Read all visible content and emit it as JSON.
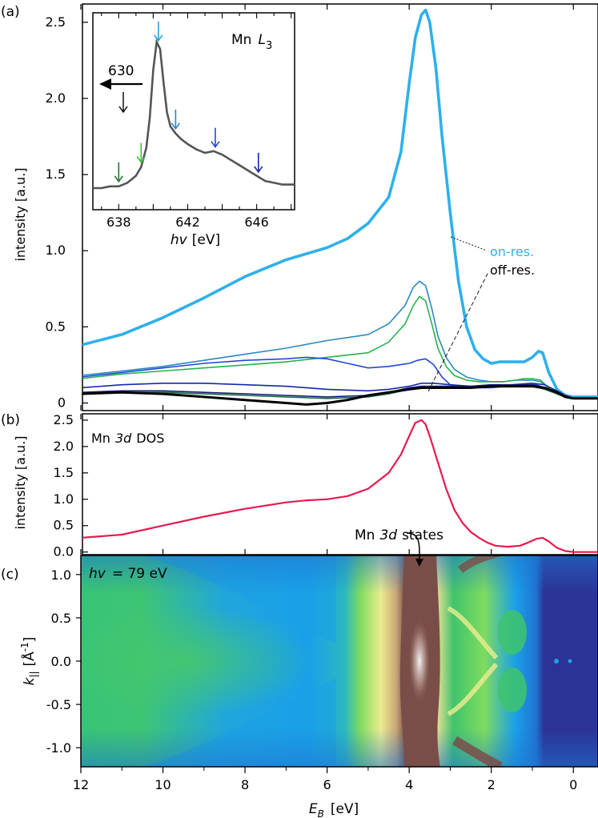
{
  "chart_data": [
    {
      "panel_label": "(a)",
      "type": "line",
      "ylabel": "intensity [a.u.]",
      "xlim": [
        12,
        -0.6
      ],
      "ylim": [
        -0.05,
        2.62
      ],
      "yticks": [
        "0",
        "0.5",
        "1.0",
        "1.5",
        "2.0",
        "2.5"
      ],
      "ytick_values": [
        0,
        0.5,
        1.0,
        1.5,
        2.0,
        2.5
      ],
      "labels": {
        "on_res": "on-res.",
        "off_res": "off-res."
      },
      "series": [
        {
          "color": "#2eb0ec",
          "width": 3.6,
          "x": [
            12,
            11,
            10,
            9,
            8,
            7,
            6,
            5.5,
            5,
            4.5,
            4.2,
            4.0,
            3.85,
            3.7,
            3.6,
            3.5,
            3.35,
            3.2,
            3.0,
            2.8,
            2.6,
            2.4,
            2.2,
            2.0,
            1.8,
            1.5,
            1.2,
            1.0,
            0.85,
            0.75,
            0.6,
            0.4,
            0.2,
            0,
            -0.2,
            -0.6
          ],
          "y": [
            0.38,
            0.45,
            0.56,
            0.69,
            0.83,
            0.94,
            1.02,
            1.08,
            1.18,
            1.35,
            1.65,
            2.1,
            2.4,
            2.55,
            2.58,
            2.5,
            2.2,
            1.75,
            1.25,
            0.8,
            0.5,
            0.35,
            0.29,
            0.26,
            0.27,
            0.27,
            0.27,
            0.3,
            0.34,
            0.33,
            0.2,
            0.09,
            0.05,
            0.04,
            0.04,
            0.04
          ]
        },
        {
          "color": "#2a88c2",
          "width": 1.6,
          "x": [
            12,
            11,
            10,
            9,
            8,
            7,
            6,
            5,
            4.5,
            4.1,
            3.9,
            3.75,
            3.6,
            3.45,
            3.3,
            3.1,
            2.9,
            2.6,
            2.3,
            2.0,
            1.7,
            1.4,
            1.2,
            1.0,
            0.8,
            0.6,
            0.4,
            0.2,
            0,
            -0.6
          ],
          "y": [
            0.18,
            0.21,
            0.24,
            0.28,
            0.32,
            0.36,
            0.41,
            0.45,
            0.52,
            0.64,
            0.76,
            0.8,
            0.77,
            0.62,
            0.44,
            0.3,
            0.22,
            0.17,
            0.15,
            0.14,
            0.14,
            0.15,
            0.15,
            0.15,
            0.14,
            0.1,
            0.06,
            0.04,
            0.03,
            0.03
          ]
        },
        {
          "color": "#27b24f",
          "width": 1.6,
          "x": [
            12,
            11,
            10,
            9,
            8,
            7,
            6,
            5,
            4.5,
            4.1,
            3.9,
            3.75,
            3.6,
            3.45,
            3.3,
            3.1,
            2.9,
            2.6,
            2.3,
            2.0,
            1.7,
            1.4,
            1.2,
            1.0,
            0.8,
            0.6,
            0.4,
            0.2,
            0,
            -0.6
          ],
          "y": [
            0.16,
            0.19,
            0.21,
            0.23,
            0.25,
            0.27,
            0.3,
            0.33,
            0.4,
            0.52,
            0.64,
            0.7,
            0.67,
            0.52,
            0.36,
            0.24,
            0.18,
            0.15,
            0.14,
            0.14,
            0.14,
            0.15,
            0.16,
            0.16,
            0.15,
            0.1,
            0.06,
            0.04,
            0.03,
            0.03
          ]
        },
        {
          "color": "#2246d8",
          "width": 1.6,
          "x": [
            12,
            11,
            10,
            9,
            8,
            7,
            6.5,
            6,
            5.5,
            5,
            4.5,
            4.0,
            3.8,
            3.6,
            3.4,
            3.2,
            3.0,
            2.7,
            2.4,
            2.0,
            1.6,
            1.2,
            0.9,
            0.6,
            0.3,
            0,
            -0.6
          ],
          "y": [
            0.17,
            0.2,
            0.23,
            0.26,
            0.28,
            0.29,
            0.3,
            0.29,
            0.26,
            0.23,
            0.24,
            0.26,
            0.28,
            0.29,
            0.25,
            0.17,
            0.12,
            0.1,
            0.1,
            0.1,
            0.11,
            0.12,
            0.12,
            0.09,
            0.05,
            0.03,
            0.03
          ]
        },
        {
          "color": "#1428a8",
          "width": 1.6,
          "x": [
            12,
            11,
            10,
            9,
            8,
            7,
            6,
            5,
            4.5,
            4.0,
            3.7,
            3.4,
            3.0,
            2.5,
            2.0,
            1.5,
            1.0,
            0.7,
            0.4,
            0.2,
            0,
            -0.6
          ],
          "y": [
            0.1,
            0.12,
            0.13,
            0.13,
            0.12,
            0.11,
            0.09,
            0.08,
            0.09,
            0.11,
            0.13,
            0.13,
            0.12,
            0.11,
            0.11,
            0.12,
            0.13,
            0.12,
            0.08,
            0.05,
            0.03,
            0.03
          ]
        },
        {
          "color": "#141e70",
          "width": 1.6,
          "x": [
            12,
            11,
            10,
            9,
            8,
            7,
            6,
            5,
            4.5,
            4.0,
            3.7,
            3.4,
            3.0,
            2.5,
            2.0,
            1.5,
            1.0,
            0.7,
            0.4,
            0.2,
            0,
            -0.6
          ],
          "y": [
            0.07,
            0.08,
            0.08,
            0.07,
            0.06,
            0.05,
            0.04,
            0.05,
            0.07,
            0.1,
            0.11,
            0.11,
            0.11,
            0.11,
            0.12,
            0.12,
            0.12,
            0.1,
            0.07,
            0.05,
            0.03,
            0.03
          ]
        },
        {
          "color": "#1c6a4a",
          "width": 1.6,
          "x": [
            12,
            11,
            10,
            9,
            8,
            7,
            6,
            5,
            4.5,
            4.0,
            3.7,
            3.4,
            3.0,
            2.5,
            2.0,
            1.5,
            1.0,
            0.7,
            0.4,
            0.2,
            0,
            -0.6
          ],
          "y": [
            0.06,
            0.07,
            0.07,
            0.06,
            0.05,
            0.04,
            0.03,
            0.04,
            0.06,
            0.09,
            0.1,
            0.1,
            0.1,
            0.1,
            0.11,
            0.11,
            0.11,
            0.09,
            0.06,
            0.04,
            0.03,
            0.03
          ]
        },
        {
          "color": "#000000",
          "width": 3.0,
          "x": [
            12,
            11,
            10,
            9,
            8,
            7,
            6.5,
            6,
            5.5,
            5,
            4.5,
            4.0,
            3.7,
            3.4,
            3.0,
            2.5,
            2.0,
            1.5,
            1.0,
            0.7,
            0.4,
            0.2,
            0,
            -0.6
          ],
          "y": [
            0.06,
            0.07,
            0.06,
            0.04,
            0.02,
            0.0,
            -0.01,
            0.0,
            0.02,
            0.05,
            0.07,
            0.09,
            0.1,
            0.1,
            0.1,
            0.1,
            0.11,
            0.11,
            0.11,
            0.1,
            0.07,
            0.04,
            0.03,
            0.03
          ]
        }
      ],
      "inset": {
        "title": "Mn",
        "title_sym": "L",
        "title_sub": "3",
        "xlabel_sym": "hv",
        "xlabel_unit": "[eV]",
        "xticks": [
          "638",
          "642",
          "646"
        ],
        "xtick_values": [
          638,
          642,
          646
        ],
        "xlim": [
          636.5,
          648.2
        ],
        "ylim": [
          0,
          1
        ],
        "arrow_label": "630",
        "x": [
          636.5,
          637,
          637.5,
          638,
          638.5,
          639,
          639.3,
          639.6,
          639.8,
          640.0,
          640.2,
          640.4,
          640.6,
          640.8,
          641.0,
          641.3,
          641.6,
          642.0,
          642.5,
          643,
          643.5,
          644,
          644.5,
          645,
          645.5,
          646,
          646.5,
          647,
          647.5,
          648.2
        ],
        "y": [
          0.05,
          0.05,
          0.06,
          0.06,
          0.08,
          0.12,
          0.17,
          0.28,
          0.45,
          0.72,
          0.88,
          0.84,
          0.65,
          0.48,
          0.4,
          0.36,
          0.33,
          0.3,
          0.27,
          0.25,
          0.26,
          0.24,
          0.21,
          0.18,
          0.15,
          0.12,
          0.09,
          0.08,
          0.07,
          0.07
        ],
        "arrows": [
          {
            "x": 638.0,
            "color": "#1f7a2e"
          },
          {
            "x": 639.3,
            "color": "#3fc03a"
          },
          {
            "x": 640.3,
            "color": "#2aa0e0"
          },
          {
            "x": 641.3,
            "color": "#2a88c2"
          },
          {
            "x": 643.6,
            "color": "#2246d8"
          },
          {
            "x": 646.1,
            "color": "#1428a8"
          }
        ]
      }
    },
    {
      "panel_label": "(b)",
      "type": "line",
      "title": "Mn",
      "title_italic": "3d",
      "title_tail": "DOS",
      "ylabel": "intensity [a.u.]",
      "xlim": [
        12,
        -0.6
      ],
      "ylim": [
        -0.05,
        2.62
      ],
      "yticks": [
        "0.0",
        "0.5",
        "1.0",
        "1.5",
        "2.0",
        "2.5"
      ],
      "ytick_values": [
        0,
        0.5,
        1.0,
        1.5,
        2.0,
        2.5
      ],
      "series": [
        {
          "color": "#e8194e",
          "width": 2.2,
          "x": [
            12,
            11,
            10,
            9,
            8,
            7,
            6.5,
            6,
            5.5,
            5,
            4.5,
            4.2,
            4.0,
            3.85,
            3.7,
            3.6,
            3.5,
            3.3,
            3.1,
            2.9,
            2.7,
            2.5,
            2.3,
            2.1,
            1.9,
            1.6,
            1.3,
            1.1,
            0.9,
            0.75,
            0.6,
            0.4,
            0.2,
            0,
            -0.6
          ],
          "y": [
            0.27,
            0.33,
            0.5,
            0.67,
            0.82,
            0.94,
            0.98,
            1.0,
            1.06,
            1.2,
            1.5,
            1.85,
            2.2,
            2.45,
            2.5,
            2.42,
            2.2,
            1.7,
            1.2,
            0.8,
            0.55,
            0.38,
            0.27,
            0.18,
            0.12,
            0.1,
            0.12,
            0.18,
            0.25,
            0.27,
            0.2,
            0.08,
            0.02,
            0.0,
            0.0
          ]
        }
      ],
      "annotation": {
        "text_pre": "Mn",
        "text_italic": "3d",
        "text_post": "states",
        "x": 3.75
      }
    },
    {
      "panel_label": "(c)",
      "type": "heatmap",
      "xlabel_sym": "E",
      "xlabel_sub": "B",
      "xlabel_unit": "[eV]",
      "xlim": [
        12,
        -0.6
      ],
      "xticks": [
        "12",
        "10",
        "8",
        "6",
        "4",
        "2",
        "0"
      ],
      "xtick_values": [
        12,
        10,
        8,
        6,
        4,
        2,
        0
      ],
      "ylabel_sym": "k",
      "ylabel_sub": "||",
      "ylabel_unit": "[Å",
      "ylabel_exp": "-1",
      "ylabel_close": "]",
      "ylim": [
        -1.22,
        1.22
      ],
      "yticks": [
        "1.0",
        "0.5",
        "0.0",
        "-0.5",
        "-1.0"
      ],
      "ytick_values": [
        1.0,
        0.5,
        0.0,
        -0.5,
        -1.0
      ],
      "annotation_sym": "hv",
      "annotation_value": "= 79 eV",
      "colormap": [
        "#2b3496",
        "#1f74d0",
        "#1aa0e8",
        "#38c476",
        "#7fdc5e",
        "#ecec90",
        "#c8a678",
        "#7a4e48",
        "#e0e0e0"
      ]
    }
  ]
}
